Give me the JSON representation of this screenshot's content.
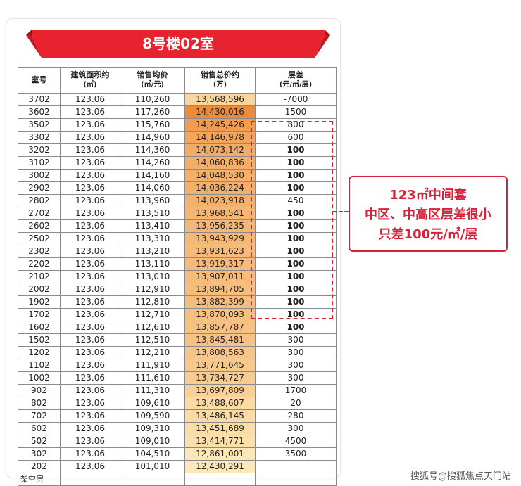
{
  "title": "8号楼02室",
  "headers": [
    {
      "main": "室号",
      "sub": ""
    },
    {
      "main": "建筑面积约",
      "sub": "(㎡)"
    },
    {
      "main": "销售均价",
      "sub": "(㎡/元)"
    },
    {
      "main": "销售总价约",
      "sub": "(万)"
    },
    {
      "main": "层差",
      "sub": "(元/㎡/层)"
    }
  ],
  "rows": [
    {
      "room": "3702",
      "area": "123.06",
      "unit_price": "110,260",
      "total": "13,568,596",
      "diff": "-7000",
      "diff_bold": false,
      "heat": 0.2
    },
    {
      "room": "3602",
      "area": "123.06",
      "unit_price": "117,260",
      "total": "14,430,016",
      "diff": "1500",
      "diff_bold": false,
      "heat": 1.0
    },
    {
      "room": "3502",
      "area": "123.06",
      "unit_price": "115,760",
      "total": "14,245,426",
      "diff": "800",
      "diff_bold": false,
      "heat": 0.82
    },
    {
      "room": "3302",
      "area": "123.06",
      "unit_price": "114,960",
      "total": "14,146,978",
      "diff": "600",
      "diff_bold": false,
      "heat": 0.72
    },
    {
      "room": "3202",
      "area": "123.06",
      "unit_price": "114,360",
      "total": "14,073,142",
      "diff": "100",
      "diff_bold": true,
      "heat": 0.65
    },
    {
      "room": "3102",
      "area": "123.06",
      "unit_price": "114,260",
      "total": "14,060,836",
      "diff": "100",
      "diff_bold": true,
      "heat": 0.63
    },
    {
      "room": "3002",
      "area": "123.06",
      "unit_price": "114,160",
      "total": "14,048,530",
      "diff": "100",
      "diff_bold": true,
      "heat": 0.62
    },
    {
      "room": "2902",
      "area": "123.06",
      "unit_price": "114,060",
      "total": "14,036,224",
      "diff": "100",
      "diff_bold": true,
      "heat": 0.61
    },
    {
      "room": "2802",
      "area": "123.06",
      "unit_price": "113,960",
      "total": "14,023,918",
      "diff": "450",
      "diff_bold": false,
      "heat": 0.6
    },
    {
      "room": "2702",
      "area": "123.06",
      "unit_price": "113,510",
      "total": "13,968,541",
      "diff": "100",
      "diff_bold": true,
      "heat": 0.54
    },
    {
      "room": "2602",
      "area": "123.06",
      "unit_price": "113,410",
      "total": "13,956,235",
      "diff": "100",
      "diff_bold": true,
      "heat": 0.53
    },
    {
      "room": "2502",
      "area": "123.06",
      "unit_price": "113,310",
      "total": "13,943,929",
      "diff": "100",
      "diff_bold": true,
      "heat": 0.52
    },
    {
      "room": "2302",
      "area": "123.06",
      "unit_price": "113,210",
      "total": "13,931,623",
      "diff": "100",
      "diff_bold": true,
      "heat": 0.5
    },
    {
      "room": "2202",
      "area": "123.06",
      "unit_price": "113,110",
      "total": "13,919,317",
      "diff": "100",
      "diff_bold": true,
      "heat": 0.49
    },
    {
      "room": "2102",
      "area": "123.06",
      "unit_price": "113,010",
      "total": "13,907,011",
      "diff": "100",
      "diff_bold": true,
      "heat": 0.48
    },
    {
      "room": "2002",
      "area": "123.06",
      "unit_price": "112,910",
      "total": "13,894,705",
      "diff": "100",
      "diff_bold": true,
      "heat": 0.47
    },
    {
      "room": "1902",
      "area": "123.06",
      "unit_price": "112,810",
      "total": "13,882,399",
      "diff": "100",
      "diff_bold": true,
      "heat": 0.46
    },
    {
      "room": "1702",
      "area": "123.06",
      "unit_price": "112,710",
      "total": "13,870,093",
      "diff": "100",
      "diff_bold": true,
      "heat": 0.44
    },
    {
      "room": "1602",
      "area": "123.06",
      "unit_price": "112,610",
      "total": "13,857,787",
      "diff": "100",
      "diff_bold": true,
      "heat": 0.43
    },
    {
      "room": "1502",
      "area": "123.06",
      "unit_price": "112,510",
      "total": "13,845,481",
      "diff": "300",
      "diff_bold": false,
      "heat": 0.42
    },
    {
      "room": "1202",
      "area": "123.06",
      "unit_price": "112,210",
      "total": "13,808,563",
      "diff": "300",
      "diff_bold": false,
      "heat": 0.38
    },
    {
      "room": "1102",
      "area": "123.06",
      "unit_price": "111,910",
      "total": "13,771,645",
      "diff": "300",
      "diff_bold": false,
      "heat": 0.34
    },
    {
      "room": "1002",
      "area": "123.06",
      "unit_price": "111,610",
      "total": "13,734,727",
      "diff": "300",
      "diff_bold": false,
      "heat": 0.3
    },
    {
      "room": "902",
      "area": "123.06",
      "unit_price": "111,310",
      "total": "13,697,809",
      "diff": "1700",
      "diff_bold": false,
      "heat": 0.27
    },
    {
      "room": "802",
      "area": "123.06",
      "unit_price": "109,610",
      "total": "13,488,607",
      "diff": "20",
      "diff_bold": false,
      "heat": 0.16
    },
    {
      "room": "702",
      "area": "123.06",
      "unit_price": "109,590",
      "total": "13,486,145",
      "diff": "280",
      "diff_bold": false,
      "heat": 0.15
    },
    {
      "room": "602",
      "area": "123.06",
      "unit_price": "109,310",
      "total": "13,451,689",
      "diff": "300",
      "diff_bold": false,
      "heat": 0.13
    },
    {
      "room": "502",
      "area": "123.06",
      "unit_price": "109,010",
      "total": "13,414,771",
      "diff": "4500",
      "diff_bold": false,
      "heat": 0.1
    },
    {
      "room": "302",
      "area": "123.06",
      "unit_price": "104,510",
      "total": "12,861,001",
      "diff": "3500",
      "diff_bold": false,
      "heat": 0.02
    },
    {
      "room": "202",
      "area": "123.06",
      "unit_price": "101,010",
      "total": "12,430,291",
      "diff": "",
      "diff_bold": false,
      "heat": 0.0
    },
    {
      "room": "架空层",
      "area": "",
      "unit_price": "",
      "total": "",
      "diff": "",
      "diff_bold": false,
      "heat": null
    }
  ],
  "callout": {
    "line1": "123㎡中间套",
    "line2": "中区、中高区层差很小",
    "line3": "只差100元/㎡/层"
  },
  "watermark": "搜狐号@搜狐焦点天门站",
  "colors": {
    "banner_red": "#e8222f",
    "banner_dark": "#b3101c",
    "heat_low": "#fde9b8",
    "heat_high": "#ee8b3a",
    "accent_red": "#d6213a"
  }
}
